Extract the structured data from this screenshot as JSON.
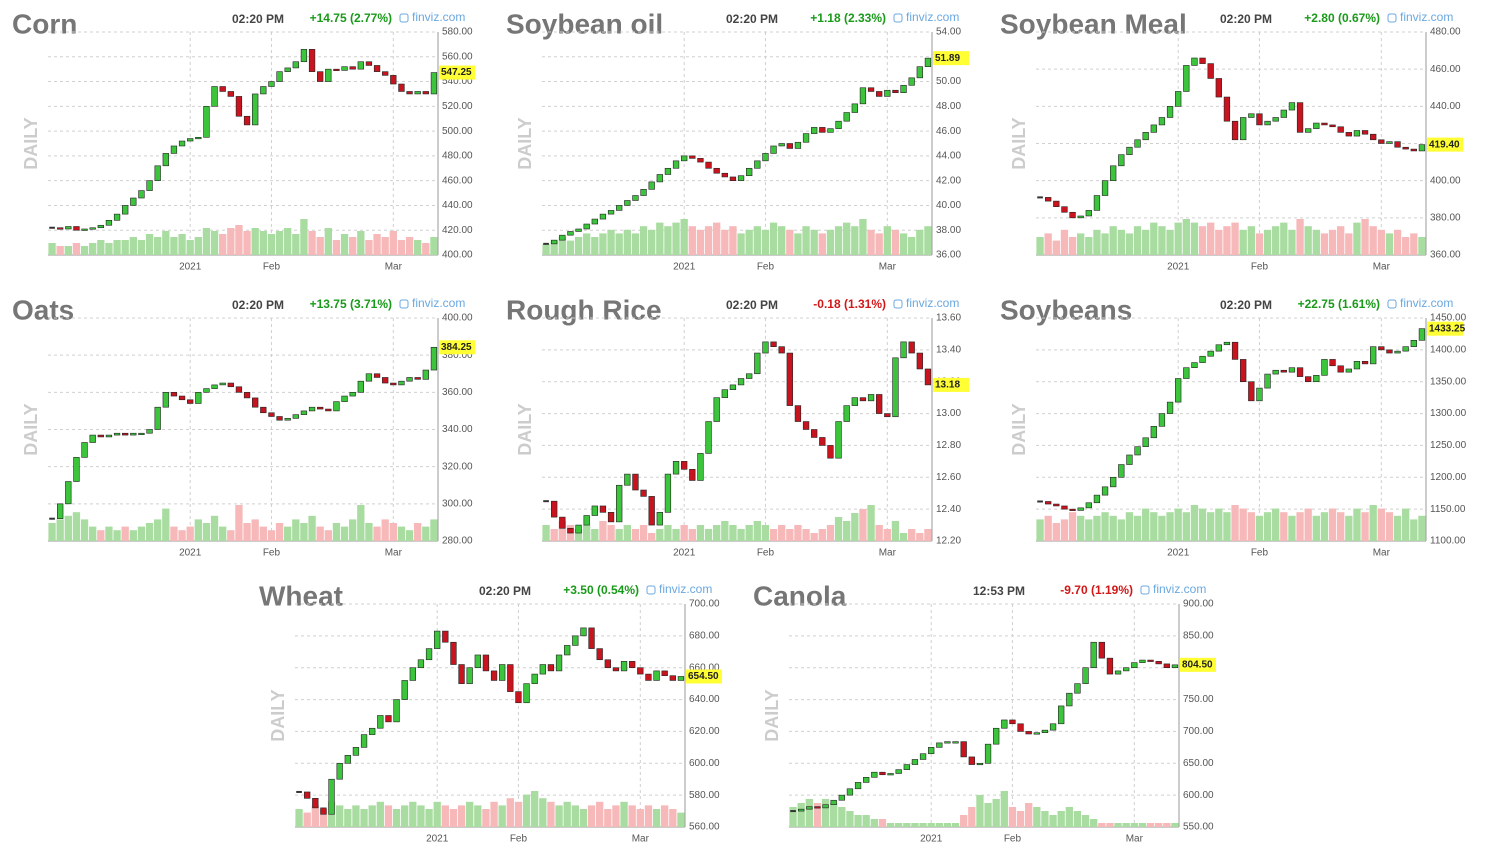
{
  "chart_data": [
    {
      "type": "candlestick",
      "title": "Corn",
      "time": "02:20 PM",
      "change": "+14.75 (2.77%)",
      "change_color": "#1a9a1a",
      "source": "finviz.com",
      "xlim": [
        -0.5,
        47.5
      ],
      "xticks": [
        {
          "value": 17,
          "label": "2021"
        },
        {
          "value": 27,
          "label": "Feb"
        },
        {
          "value": 42,
          "label": "Mar"
        }
      ],
      "ylim": [
        400,
        580
      ],
      "yticks": [
        {
          "value": 400,
          "label": "400.00"
        },
        {
          "value": 420,
          "label": "420.00"
        },
        {
          "value": 440,
          "label": "440.00"
        },
        {
          "value": 460,
          "label": "460.00"
        },
        {
          "value": 480,
          "label": "480.00"
        },
        {
          "value": 500,
          "label": "500.00"
        },
        {
          "value": 520,
          "label": "520.00"
        },
        {
          "value": 540,
          "label": "540.00"
        },
        {
          "value": 560,
          "label": "560.00"
        },
        {
          "value": 580,
          "label": "580.00"
        }
      ],
      "close": [
        422,
        421,
        423,
        420,
        421,
        422,
        424,
        428,
        433,
        440,
        446,
        452,
        460,
        472,
        482,
        488,
        492,
        494,
        495,
        520,
        536,
        532,
        528,
        512,
        505,
        530,
        536,
        540,
        548,
        551,
        556,
        566,
        548,
        540,
        550,
        549,
        552,
        550,
        556,
        553,
        548,
        545,
        538,
        532,
        530,
        532,
        530,
        547.25
      ],
      "volume": [
        4,
        3,
        3,
        4,
        3,
        4,
        5,
        4,
        5,
        5,
        6,
        5,
        7,
        6,
        8,
        6,
        7,
        5,
        6,
        9,
        8,
        7,
        9,
        10,
        8,
        9,
        8,
        7,
        8,
        9,
        7,
        12,
        8,
        6,
        9,
        5,
        7,
        6,
        8,
        5,
        7,
        6,
        8,
        5,
        6,
        5,
        4,
        6
      ],
      "price": 547.25,
      "up_color": "#3cc43c",
      "down_color": "#c8141e"
    },
    {
      "type": "candlestick",
      "title": "Soybean oil",
      "time": "02:20 PM",
      "change": "+1.18 (2.33%)",
      "change_color": "#1a9a1a",
      "source": "finviz.com",
      "xlim": [
        -0.5,
        47.5
      ],
      "xticks": [
        {
          "value": 17,
          "label": "2021"
        },
        {
          "value": 27,
          "label": "Feb"
        },
        {
          "value": 42,
          "label": "Mar"
        }
      ],
      "ylim": [
        36,
        54
      ],
      "yticks": [
        {
          "value": 36,
          "label": "36.00"
        },
        {
          "value": 38,
          "label": "38.00"
        },
        {
          "value": 40,
          "label": "40.00"
        },
        {
          "value": 42,
          "label": "42.00"
        },
        {
          "value": 44,
          "label": "44.00"
        },
        {
          "value": 46,
          "label": "46.00"
        },
        {
          "value": 48,
          "label": "48.00"
        },
        {
          "value": 50,
          "label": "50.00"
        },
        {
          "value": 52,
          "label": "52.00"
        },
        {
          "value": 54,
          "label": "54.00"
        }
      ],
      "close": [
        36.9,
        37.2,
        37.6,
        37.9,
        38.1,
        38.5,
        38.9,
        39.3,
        39.6,
        40.0,
        40.4,
        40.8,
        41.3,
        41.9,
        42.5,
        43.0,
        43.6,
        44.0,
        43.8,
        43.5,
        43.0,
        42.6,
        42.3,
        42.0,
        42.4,
        43.0,
        43.6,
        44.2,
        44.8,
        45.0,
        44.6,
        45.1,
        45.8,
        46.3,
        45.9,
        46.2,
        46.8,
        47.5,
        48.2,
        49.5,
        49.2,
        48.8,
        49.3,
        49.1,
        49.7,
        50.3,
        51.2,
        51.89
      ],
      "volume": [
        3,
        4,
        5,
        4,
        5,
        6,
        5,
        6,
        7,
        6,
        7,
        6,
        8,
        7,
        9,
        8,
        9,
        10,
        8,
        7,
        8,
        9,
        7,
        8,
        6,
        7,
        8,
        7,
        9,
        8,
        7,
        6,
        8,
        7,
        6,
        7,
        8,
        9,
        8,
        10,
        7,
        6,
        8,
        7,
        6,
        5,
        7,
        8
      ],
      "price": 51.89,
      "up_color": "#3cc43c",
      "down_color": "#c8141e"
    },
    {
      "type": "candlestick",
      "title": "Soybean Meal",
      "time": "02:20 PM",
      "change": "+2.80 (0.67%)",
      "change_color": "#1a9a1a",
      "source": "finviz.com",
      "xlim": [
        -0.5,
        47.5
      ],
      "xticks": [
        {
          "value": 17,
          "label": "2021"
        },
        {
          "value": 27,
          "label": "Feb"
        },
        {
          "value": 42,
          "label": "Mar"
        }
      ],
      "ylim": [
        360,
        480
      ],
      "yticks": [
        {
          "value": 360,
          "label": "360.00"
        },
        {
          "value": 380,
          "label": "380.00"
        },
        {
          "value": 400,
          "label": "400.00"
        },
        {
          "value": 420,
          "label": "420.00"
        },
        {
          "value": 440,
          "label": "440.00"
        },
        {
          "value": 460,
          "label": "460.00"
        },
        {
          "value": 480,
          "label": "480.00"
        }
      ],
      "close": [
        391,
        389,
        386,
        383,
        380,
        381,
        384,
        392,
        400,
        408,
        414,
        418,
        422,
        426,
        430,
        434,
        440,
        448,
        462,
        466,
        463,
        455,
        445,
        432,
        422,
        434,
        436,
        430,
        432,
        434,
        438,
        442,
        426,
        428,
        431,
        430,
        429,
        426,
        424,
        427,
        425,
        422,
        420,
        421,
        418,
        417,
        416,
        419.4
      ],
      "volume": [
        5,
        6,
        4,
        7,
        5,
        6,
        5,
        7,
        6,
        8,
        7,
        6,
        8,
        7,
        9,
        8,
        7,
        9,
        10,
        9,
        8,
        9,
        7,
        8,
        9,
        7,
        8,
        6,
        7,
        8,
        9,
        7,
        10,
        8,
        7,
        6,
        7,
        8,
        6,
        9,
        10,
        8,
        7,
        6,
        7,
        5,
        6,
        5
      ],
      "price": {
        "value": 419.4,
        "label": "419.40"
      },
      "up_color": "#3cc43c",
      "down_color": "#c8141e"
    },
    {
      "type": "candlestick",
      "title": "Oats",
      "time": "02:20 PM",
      "change": "+13.75 (3.71%)",
      "change_color": "#1a9a1a",
      "source": "finviz.com",
      "xlim": [
        -0.5,
        47.5
      ],
      "xticks": [
        {
          "value": 17,
          "label": "2021"
        },
        {
          "value": 27,
          "label": "Feb"
        },
        {
          "value": 42,
          "label": "Mar"
        }
      ],
      "ylim": [
        280,
        400
      ],
      "yticks": [
        {
          "value": 280,
          "label": "280.00"
        },
        {
          "value": 300,
          "label": "300.00"
        },
        {
          "value": 320,
          "label": "320.00"
        },
        {
          "value": 340,
          "label": "340.00"
        },
        {
          "value": 360,
          "label": "360.00"
        },
        {
          "value": 380,
          "label": "380.00"
        },
        {
          "value": 400,
          "label": "400.00"
        }
      ],
      "close": [
        292,
        300,
        312,
        325,
        333,
        337,
        336,
        337,
        338,
        337,
        338,
        338,
        340,
        352,
        360,
        358,
        356,
        354,
        360,
        362,
        364,
        365,
        363,
        360,
        357,
        352,
        349,
        347,
        345,
        346,
        348,
        350,
        352,
        351,
        350,
        355,
        358,
        360,
        366,
        370,
        368,
        365,
        364,
        366,
        368,
        367,
        372,
        384.25
      ],
      "volume": [
        5,
        6,
        7,
        8,
        6,
        4,
        3,
        4,
        3,
        4,
        3,
        4,
        5,
        6,
        9,
        4,
        3,
        4,
        6,
        5,
        7,
        4,
        3,
        10,
        5,
        6,
        4,
        3,
        5,
        4,
        6,
        5,
        7,
        4,
        3,
        5,
        4,
        6,
        10,
        5,
        4,
        6,
        5,
        4,
        3,
        5,
        4,
        6
      ],
      "price": 384.25,
      "up_color": "#3cc43c",
      "down_color": "#c8141e"
    },
    {
      "type": "candlestick",
      "title": "Rough Rice",
      "time": "02:20 PM",
      "change": "-0.18 (1.31%)",
      "change_color": "#d01818",
      "source": "finviz.com",
      "xlim": [
        -0.5,
        47.5
      ],
      "xticks": [
        {
          "value": 17,
          "label": "2021"
        },
        {
          "value": 27,
          "label": "Feb"
        },
        {
          "value": 42,
          "label": "Mar"
        }
      ],
      "ylim": [
        12.2,
        13.6
      ],
      "yticks": [
        {
          "value": 12.2,
          "label": "12.20"
        },
        {
          "value": 12.4,
          "label": "12.40"
        },
        {
          "value": 12.6,
          "label": "12.60"
        },
        {
          "value": 12.8,
          "label": "12.80"
        },
        {
          "value": 13,
          "label": "13.00"
        },
        {
          "value": 13.2,
          "label": "13.20"
        },
        {
          "value": 13.4,
          "label": "13.40"
        },
        {
          "value": 13.6,
          "label": "13.60"
        }
      ],
      "close": [
        12.45,
        12.35,
        12.28,
        12.25,
        12.3,
        12.36,
        12.42,
        12.38,
        12.32,
        12.55,
        12.62,
        12.52,
        12.48,
        12.3,
        12.38,
        12.62,
        12.7,
        12.65,
        12.58,
        12.75,
        12.95,
        13.1,
        13.15,
        13.18,
        13.22,
        13.25,
        13.38,
        13.45,
        13.42,
        13.38,
        13.05,
        12.95,
        12.9,
        12.85,
        12.8,
        12.72,
        12.95,
        13.05,
        13.1,
        13.08,
        13.12,
        13.0,
        12.98,
        13.35,
        13.45,
        13.38,
        13.28,
        13.18
      ],
      "volume": [
        4,
        3,
        5,
        4,
        3,
        4,
        3,
        5,
        4,
        3,
        4,
        3,
        4,
        2,
        3,
        4,
        3,
        4,
        3,
        4,
        3,
        4,
        5,
        4,
        3,
        4,
        5,
        4,
        3,
        4,
        3,
        4,
        3,
        2,
        3,
        4,
        6,
        5,
        7,
        8,
        9,
        4,
        3,
        5,
        2,
        3,
        2,
        3
      ],
      "price": 13.18,
      "up_color": "#3cc43c",
      "down_color": "#c8141e"
    },
    {
      "type": "candlestick",
      "title": "Soybeans",
      "time": "02:20 PM",
      "change": "+22.75 (1.61%)",
      "change_color": "#1a9a1a",
      "source": "finviz.com",
      "xlim": [
        -0.5,
        47.5
      ],
      "xticks": [
        {
          "value": 17,
          "label": "2021"
        },
        {
          "value": 27,
          "label": "Feb"
        },
        {
          "value": 42,
          "label": "Mar"
        }
      ],
      "ylim": [
        1100,
        1450
      ],
      "yticks": [
        {
          "value": 1100,
          "label": "1100.00"
        },
        {
          "value": 1150,
          "label": "1150.00"
        },
        {
          "value": 1200,
          "label": "1200.00"
        },
        {
          "value": 1250,
          "label": "1250.00"
        },
        {
          "value": 1300,
          "label": "1300.00"
        },
        {
          "value": 1350,
          "label": "1350.00"
        },
        {
          "value": 1400,
          "label": "1400.00"
        },
        {
          "value": 1450,
          "label": "1450.00"
        }
      ],
      "close": [
        1162,
        1158,
        1155,
        1150,
        1148,
        1152,
        1160,
        1172,
        1185,
        1200,
        1220,
        1235,
        1248,
        1262,
        1280,
        1300,
        1318,
        1355,
        1372,
        1380,
        1390,
        1398,
        1408,
        1412,
        1385,
        1350,
        1320,
        1340,
        1362,
        1368,
        1365,
        1372,
        1358,
        1350,
        1360,
        1385,
        1375,
        1365,
        1370,
        1382,
        1378,
        1405,
        1400,
        1395,
        1398,
        1405,
        1415,
        1433.25
      ],
      "volume": [
        6,
        7,
        5,
        6,
        8,
        7,
        6,
        7,
        8,
        7,
        6,
        8,
        7,
        9,
        8,
        7,
        8,
        9,
        8,
        10,
        9,
        8,
        9,
        8,
        10,
        9,
        8,
        7,
        8,
        9,
        8,
        7,
        8,
        9,
        7,
        8,
        9,
        8,
        7,
        9,
        8,
        10,
        9,
        8,
        7,
        9,
        6,
        7
      ],
      "price": 1433.25,
      "up_color": "#3cc43c",
      "down_color": "#c8141e"
    },
    {
      "type": "candlestick",
      "title": "Wheat",
      "time": "02:20 PM",
      "change": "+3.50 (0.54%)",
      "change_color": "#1a9a1a",
      "source": "finviz.com",
      "xlim": [
        -0.5,
        47.5
      ],
      "xticks": [
        {
          "value": 17,
          "label": "2021"
        },
        {
          "value": 27,
          "label": "Feb"
        },
        {
          "value": 42,
          "label": "Mar"
        }
      ],
      "ylim": [
        560,
        700
      ],
      "yticks": [
        {
          "value": 560,
          "label": "560.00"
        },
        {
          "value": 580,
          "label": "580.00"
        },
        {
          "value": 600,
          "label": "600.00"
        },
        {
          "value": 620,
          "label": "620.00"
        },
        {
          "value": 640,
          "label": "640.00"
        },
        {
          "value": 660,
          "label": "660.00"
        },
        {
          "value": 680,
          "label": "680.00"
        },
        {
          "value": 700,
          "label": "700.00"
        }
      ],
      "close": [
        582,
        578,
        572,
        568,
        590,
        600,
        605,
        610,
        618,
        622,
        630,
        626,
        640,
        652,
        660,
        665,
        672,
        683,
        676,
        662,
        650,
        660,
        668,
        658,
        652,
        662,
        645,
        638,
        650,
        656,
        662,
        658,
        668,
        674,
        680,
        685,
        672,
        665,
        660,
        658,
        664,
        660,
        656,
        652,
        658,
        655,
        652,
        654.5
      ],
      "volume": [
        5,
        4,
        6,
        5,
        7,
        6,
        5,
        6,
        5,
        6,
        7,
        6,
        5,
        6,
        7,
        6,
        5,
        7,
        6,
        5,
        6,
        7,
        6,
        5,
        7,
        6,
        8,
        7,
        9,
        10,
        8,
        7,
        6,
        7,
        6,
        5,
        6,
        7,
        5,
        6,
        7,
        6,
        5,
        6,
        5,
        6,
        5,
        4
      ],
      "price": {
        "value": 654.5,
        "label": "654.50"
      },
      "up_color": "#3cc43c",
      "down_color": "#c8141e"
    },
    {
      "type": "candlestick",
      "title": "Canola",
      "time": "12:53 PM",
      "change": "-9.70 (1.19%)",
      "change_color": "#d01818",
      "source": "finviz.com",
      "xlim": [
        -0.5,
        47.5
      ],
      "xticks": [
        {
          "value": 17,
          "label": "2021"
        },
        {
          "value": 27,
          "label": "Feb"
        },
        {
          "value": 42,
          "label": "Mar"
        }
      ],
      "ylim": [
        550,
        900
      ],
      "yticks": [
        {
          "value": 550,
          "label": "550.00"
        },
        {
          "value": 600,
          "label": "600.00"
        },
        {
          "value": 650,
          "label": "650.00"
        },
        {
          "value": 700,
          "label": "700.00"
        },
        {
          "value": 750,
          "label": "750.00"
        },
        {
          "value": 800,
          "label": "800.00"
        },
        {
          "value": 850,
          "label": "850.00"
        },
        {
          "value": 900,
          "label": "900.00"
        }
      ],
      "close": [
        575,
        578,
        582,
        580,
        585,
        592,
        600,
        610,
        620,
        628,
        636,
        632,
        634,
        640,
        648,
        656,
        665,
        675,
        682,
        684,
        684,
        660,
        648,
        650,
        680,
        705,
        718,
        712,
        700,
        696,
        698,
        702,
        712,
        740,
        760,
        775,
        800,
        840,
        815,
        790,
        795,
        800,
        808,
        812,
        810,
        806,
        800,
        804.5
      ],
      "volume": [
        5,
        6,
        7,
        6,
        7,
        6,
        5,
        4,
        3,
        3,
        2,
        2,
        1,
        1,
        1,
        1,
        1,
        1,
        1,
        1,
        1,
        3,
        5,
        8,
        6,
        7,
        9,
        5,
        4,
        6,
        5,
        4,
        3,
        4,
        5,
        4,
        3,
        2,
        1,
        1,
        1,
        1,
        1,
        1,
        1,
        1,
        1,
        1
      ],
      "price": {
        "value": 804.5,
        "label": "804.50"
      },
      "up_color": "#3cc43c",
      "down_color": "#c8141e"
    }
  ]
}
